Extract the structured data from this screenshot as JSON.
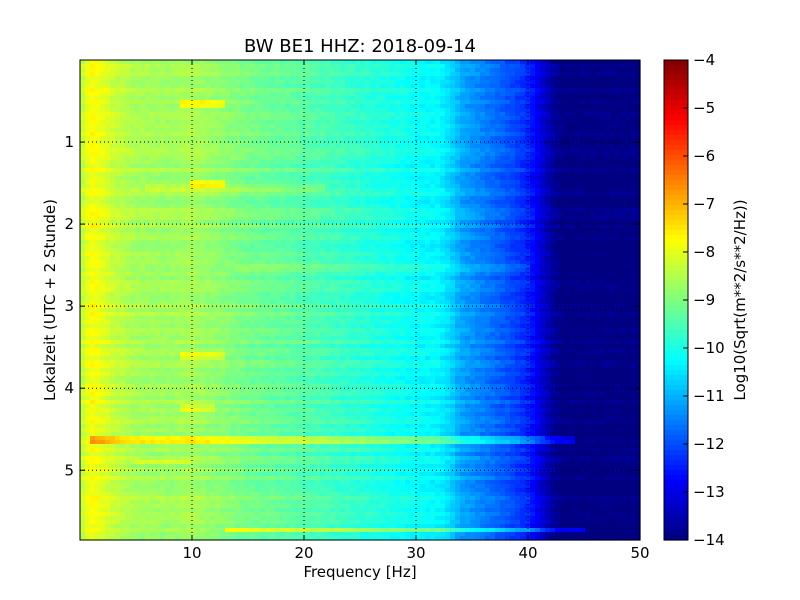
{
  "chart_data": {
    "type": "heatmap",
    "title": "BW BE1 HHZ: 2018-09-14",
    "xlabel": "Frequency [Hz]",
    "ylabel": "Lokalzeit (UTC + 2 Stunde)",
    "colorbar_label": "Log10(Sqrt(m**2/s**2/Hz))",
    "xlim": [
      0,
      50
    ],
    "ylim": [
      5.85,
      0
    ],
    "xticks": [
      10,
      20,
      30,
      40,
      50
    ],
    "yticks": [
      1,
      2,
      3,
      4,
      5
    ],
    "clim": [
      -14,
      -4
    ],
    "cbar_ticks": [
      -4,
      -5,
      -6,
      -7,
      -8,
      -9,
      -10,
      -11,
      -12,
      -13,
      -14
    ],
    "colormap": "jet",
    "grid": true,
    "spectrum_profile": {
      "frequency_hz": [
        0,
        0.5,
        1,
        2,
        3,
        5,
        8,
        10,
        12,
        15,
        20,
        25,
        30,
        32,
        33,
        34,
        36,
        38,
        40,
        41,
        42,
        43,
        44,
        45,
        50
      ],
      "log10_amplitude": [
        -8.6,
        -8.0,
        -7.8,
        -8.0,
        -8.3,
        -8.6,
        -8.7,
        -8.6,
        -8.8,
        -9.1,
        -9.4,
        -9.8,
        -10.2,
        -10.3,
        -10.6,
        -11.1,
        -11.5,
        -11.9,
        -12.4,
        -13.0,
        -13.6,
        -14.0,
        -14.0,
        -14.0,
        -14.0
      ]
    },
    "events": [
      {
        "time_h": 0.55,
        "f_from_hz": 9,
        "f_to_hz": 13,
        "delta": 0.9
      },
      {
        "time_h": 1.5,
        "f_from_hz": 10,
        "f_to_hz": 13,
        "delta": 0.9
      },
      {
        "time_h": 1.55,
        "f_from_hz": 6,
        "f_to_hz": 22,
        "delta": 0.3
      },
      {
        "time_h": 2.55,
        "f_from_hz": 14,
        "f_to_hz": 40,
        "delta": 0.35
      },
      {
        "time_h": 3.6,
        "f_from_hz": 9,
        "f_to_hz": 13,
        "delta": 0.7
      },
      {
        "time_h": 4.25,
        "f_from_hz": 9,
        "f_to_hz": 12,
        "delta": 0.6
      },
      {
        "time_h": 4.63,
        "f_from_hz": 1,
        "f_to_hz": 44,
        "delta": 1.0
      },
      {
        "time_h": 4.9,
        "f_from_hz": 5,
        "f_to_hz": 10,
        "delta": 0.5
      },
      {
        "time_h": 5.73,
        "f_from_hz": 13,
        "f_to_hz": 45,
        "delta": 1.1
      }
    ]
  }
}
